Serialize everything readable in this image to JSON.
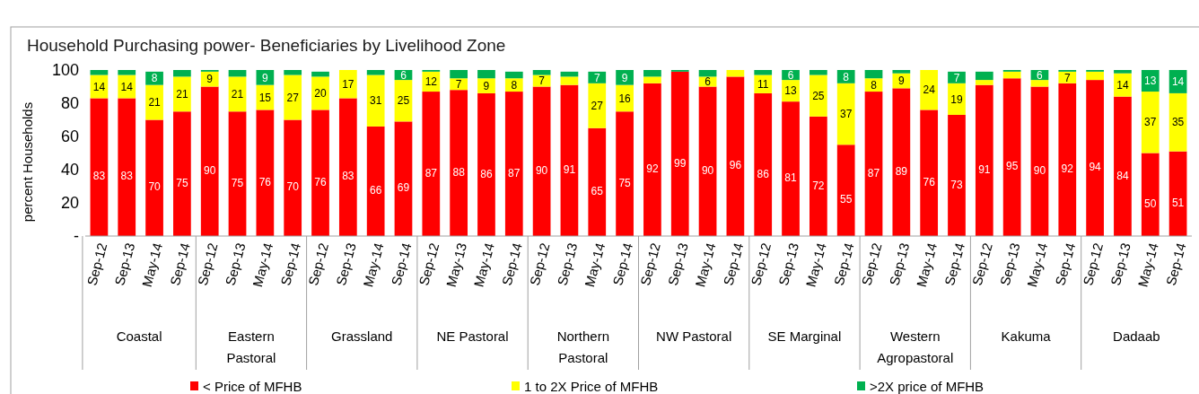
{
  "chart_data": {
    "type": "bar",
    "stacked": true,
    "title": "Household Purchasing power- Beneficiaries  by Livelihood Zone",
    "ylabel": "percent Households",
    "categories": [
      "Sep-12",
      "Sep-13",
      "May-14",
      "Sep-14",
      "Sep-12",
      "Sep-13",
      "May-14",
      "Sep-14",
      "Sep-12",
      "Sep-13",
      "May-14",
      "Sep-14",
      "Sep-12",
      "May-13",
      "May-14",
      "Sep-14",
      "Sep-12",
      "Sep-13",
      "May-14",
      "Sep-14",
      "Sep-12",
      "Sep-13",
      "May-14",
      "Sep-14",
      "Sep-12",
      "Sep-13",
      "May-14",
      "Sep-14",
      "Sep-12",
      "Sep-13",
      "May-14",
      "Sep-14",
      "Sep-12",
      "Sep-13",
      "May-14",
      "Sep-14",
      "Sep-12",
      "Sep-13",
      "May-14",
      "Sep-14"
    ],
    "annotations": [
      "Coastal",
      "Eastern Pastoral",
      "Grassland",
      "NE Pastoral",
      "Northern Pastoral",
      "NW Pastoral",
      "SE  Marginal",
      "Western Agropastoral",
      "Kakuma",
      "Dadaab"
    ],
    "series": [
      {
        "name": "< Price of MFHB",
        "color": "#ff0000",
        "value_labels": [
          "83",
          "83",
          "70",
          "75",
          "90",
          "75",
          "76",
          "70",
          "76",
          "83",
          "66",
          "69",
          "87",
          "88",
          "86",
          "87",
          "90",
          "91",
          "65",
          "75",
          "92",
          "99",
          "90",
          "96",
          "86",
          "81",
          "72",
          "55",
          "87",
          "89",
          "76",
          "73",
          "91",
          "95",
          "90",
          "92",
          "94",
          "84",
          "50",
          "51"
        ],
        "values": [
          83,
          83,
          70,
          75,
          90,
          75,
          76,
          70,
          76,
          83,
          66,
          69,
          87,
          88,
          86,
          87,
          90,
          91,
          65,
          75,
          92,
          99,
          90,
          96,
          86,
          81,
          72,
          55,
          87,
          89,
          76,
          73,
          91,
          95,
          90,
          92,
          94,
          84,
          50,
          51
        ]
      },
      {
        "name": "1 to 2X Price of MFHB",
        "color": "#ffff00",
        "value_labels": [
          "14",
          "14",
          "21",
          "21",
          "9",
          "21",
          "15",
          "27",
          "20",
          "17",
          "31",
          "25",
          "12",
          "7",
          "9",
          "8",
          "7",
          null,
          "27",
          "16",
          null,
          null,
          "6",
          null,
          "11",
          "13",
          "25",
          "37",
          "8",
          "9",
          "24",
          "19",
          null,
          null,
          null,
          "7",
          null,
          "14",
          "37",
          "35"
        ],
        "values": [
          14,
          14,
          21,
          21,
          9,
          21,
          15,
          27,
          20,
          17,
          31,
          25,
          12,
          7,
          9,
          8,
          7,
          5,
          27,
          16,
          4,
          null,
          6,
          4,
          11,
          13,
          25,
          37,
          8,
          9,
          24,
          19,
          3,
          4,
          4,
          7,
          5,
          14,
          37,
          35
        ]
      },
      {
        "name": ">2X price of MFHB",
        "color": "#00b050",
        "value_labels": [
          null,
          null,
          "8",
          null,
          null,
          null,
          "9",
          null,
          null,
          null,
          null,
          "6",
          null,
          null,
          null,
          null,
          null,
          null,
          "7",
          "9",
          null,
          null,
          null,
          null,
          null,
          "6",
          null,
          "8",
          null,
          null,
          null,
          "7",
          null,
          null,
          "6",
          null,
          null,
          null,
          "13",
          "14"
        ],
        "values": [
          3,
          3,
          8,
          4,
          1,
          4,
          9,
          3,
          3,
          null,
          3,
          6,
          1,
          5,
          5,
          4,
          3,
          3,
          7,
          9,
          4,
          1,
          4,
          null,
          3,
          6,
          3,
          8,
          5,
          2,
          null,
          7,
          5,
          1,
          6,
          1,
          1,
          2,
          13,
          14
        ]
      }
    ],
    "ylim": [
      0,
      100
    ],
    "yticks": [
      {
        "value": 0,
        "label": "-"
      },
      20,
      40,
      60,
      80,
      100
    ],
    "legend": "bottom",
    "grid": false
  }
}
